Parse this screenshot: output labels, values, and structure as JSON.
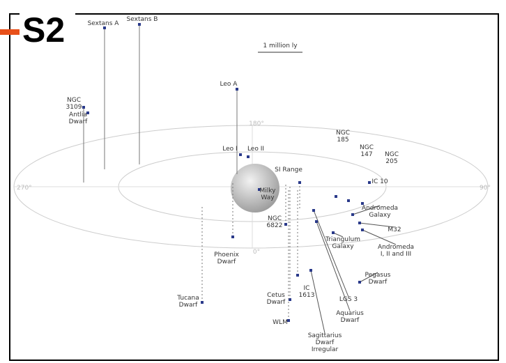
{
  "title": "S2",
  "scale_label": "1 million ly",
  "angles": [
    "180°",
    "0°",
    "270°",
    "90°"
  ],
  "nodes": [
    {
      "label": [
        "Sextans A"
      ]
    },
    {
      "label": [
        "Sextans B"
      ]
    },
    {
      "label": [
        "NGC",
        "3109"
      ]
    },
    {
      "label": [
        "Antlia",
        "Dwarf"
      ]
    },
    {
      "label": [
        "Leo A"
      ]
    },
    {
      "label": [
        "Leo I"
      ]
    },
    {
      "label": [
        "Leo II"
      ]
    },
    {
      "label": [
        "Milky",
        "Way"
      ]
    },
    {
      "label": [
        "SI Range"
      ]
    },
    {
      "label": [
        "NGC",
        "185"
      ]
    },
    {
      "label": [
        "NGC",
        "147"
      ]
    },
    {
      "label": [
        "NGC",
        "205"
      ]
    },
    {
      "label": [
        "IC 10"
      ]
    },
    {
      "label": [
        "Andromeda",
        "Galaxy"
      ]
    },
    {
      "label": [
        "M32"
      ]
    },
    {
      "label": [
        "Triangulum",
        "Galaxy"
      ]
    },
    {
      "label": [
        "Andromeda",
        "I, II and III"
      ]
    },
    {
      "label": [
        "Pegasus",
        "Dwarf"
      ]
    },
    {
      "label": [
        "LGS 3"
      ]
    },
    {
      "label": [
        "Aquarius",
        "Dwarf"
      ]
    },
    {
      "label": [
        "Sagittarius",
        "Dwarf",
        "Irregular"
      ]
    },
    {
      "label": [
        "NGC",
        "6822"
      ]
    },
    {
      "label": [
        "IC",
        "1613"
      ]
    },
    {
      "label": [
        "Cetus",
        "Dwarf"
      ]
    },
    {
      "label": [
        "WLM"
      ]
    },
    {
      "label": [
        "Phoenix",
        "Dwarf"
      ]
    },
    {
      "label": [
        "Tucana",
        "Dwarf"
      ]
    }
  ]
}
